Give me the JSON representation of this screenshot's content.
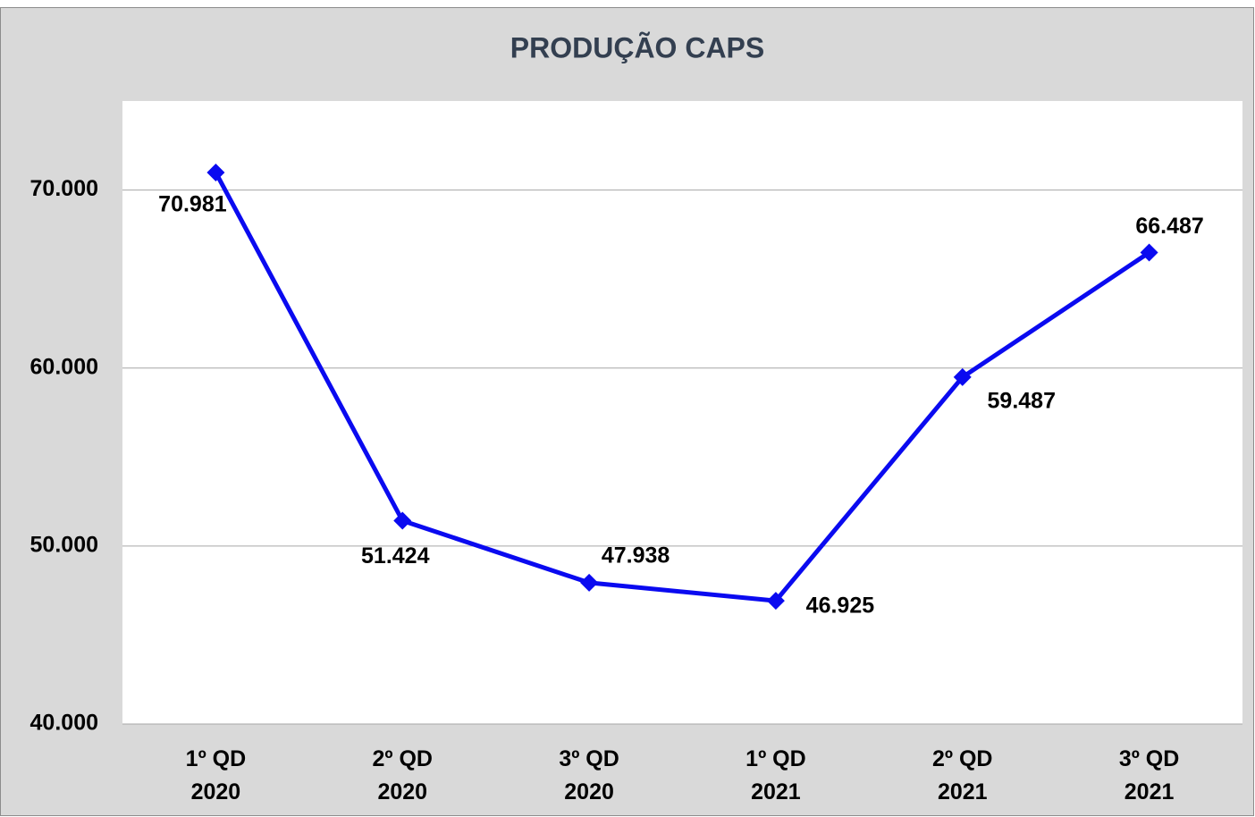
{
  "chart_data": {
    "type": "line",
    "title": "PRODUÇÃO CAPS",
    "categories": [
      "1º QD 2020",
      "2º QD 2020",
      "3º QD 2020",
      "1º QD 2021",
      "2º QD 2021",
      "3º QD 2021"
    ],
    "series": [
      {
        "name": "CAPS",
        "color": "#0a0af0",
        "values": [
          70981,
          51424,
          47938,
          46925,
          59487,
          66487
        ],
        "value_labels": [
          "70.981",
          "51.424",
          "47.938",
          "46.925",
          "59.487",
          "66.487"
        ]
      }
    ],
    "ylim": [
      40000,
      75000
    ],
    "yticks": [
      {
        "value": 40000,
        "label": "40.000"
      },
      {
        "value": 50000,
        "label": "50.000"
      },
      {
        "value": 60000,
        "label": "60.000"
      },
      {
        "value": 70000,
        "label": "70.000"
      }
    ],
    "grid": true
  }
}
